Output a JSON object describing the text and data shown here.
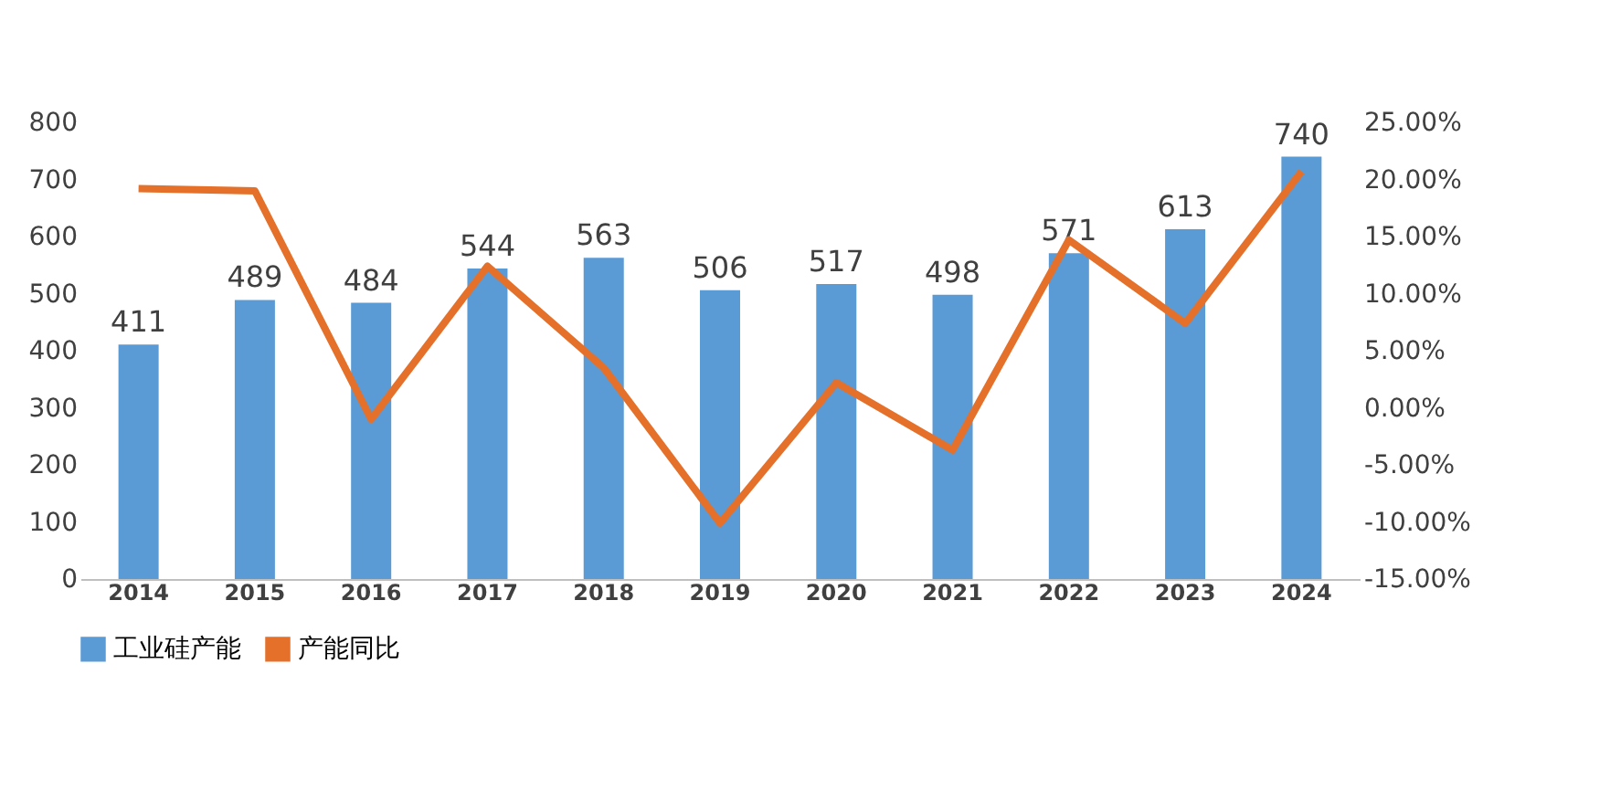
{
  "chart_data": {
    "type": "bar",
    "categories": [
      "2014",
      "2015",
      "2016",
      "2017",
      "2018",
      "2019",
      "2020",
      "2021",
      "2022",
      "2023",
      "2024"
    ],
    "series": [
      {
        "name": "工业硅产能",
        "color": "#5b9bd5",
        "values": [
          411,
          489,
          484,
          544,
          563,
          506,
          517,
          498,
          571,
          613,
          740
        ],
        "value_labels": [
          "411",
          "489",
          "484",
          "544",
          "563",
          "506",
          "517",
          "498",
          "571",
          "613",
          "740"
        ]
      },
      {
        "name": "产能同比",
        "type": "line",
        "axis": "y2",
        "color": "#e5702a",
        "values": [
          19.2,
          19.0,
          -1.0,
          12.4,
          3.5,
          -10.1,
          2.2,
          -3.7,
          14.7,
          7.4,
          20.7
        ]
      }
    ],
    "ylim": [
      0,
      800
    ],
    "yticks": [
      0,
      100,
      200,
      300,
      400,
      500,
      600,
      700,
      800
    ],
    "y2lim": [
      -15,
      25
    ],
    "y2ticks": [
      {
        "value": -15,
        "label": "-15.00%"
      },
      {
        "value": -10,
        "label": "-10.00%"
      },
      {
        "value": -5,
        "label": "-5.00%"
      },
      {
        "value": 0,
        "label": "0.00%"
      },
      {
        "value": 5,
        "label": "5.00%"
      },
      {
        "value": 10,
        "label": "10.00%"
      },
      {
        "value": 15,
        "label": "15.00%"
      },
      {
        "value": 20,
        "label": "20.00%"
      },
      {
        "value": 25,
        "label": "25.00%"
      }
    ],
    "grid": false,
    "legend": "bottom",
    "marker": "none",
    "line_style": "solid"
  }
}
